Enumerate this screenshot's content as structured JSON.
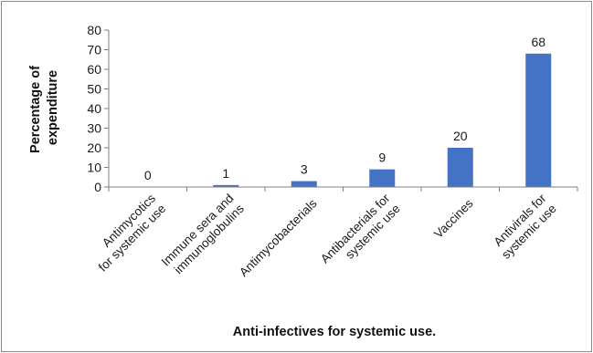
{
  "chart_data": {
    "type": "bar",
    "categories": [
      [
        "Antimycotics",
        "for systemic use"
      ],
      [
        "Immune sera and",
        "immunoglobulins"
      ],
      [
        "Antimycobacterials"
      ],
      [
        "Antibacterials for",
        "systemic use"
      ],
      [
        "Vaccines"
      ],
      [
        "Antivirals for",
        "systemic use"
      ]
    ],
    "values": [
      0,
      1,
      3,
      9,
      20,
      68
    ],
    "data_labels": [
      "0",
      "1",
      "3",
      "9",
      "20",
      "68"
    ],
    "yticks": [
      "0",
      "10",
      "20",
      "30",
      "40",
      "50",
      "60",
      "70",
      "80"
    ],
    "ylim": [
      0,
      80
    ],
    "ylabel": [
      "Percentage of",
      "expenditure"
    ],
    "xlabel": "Anti-infectives for systemic use.",
    "bar_color": "#4472C4",
    "grid": false,
    "legend": "none"
  }
}
